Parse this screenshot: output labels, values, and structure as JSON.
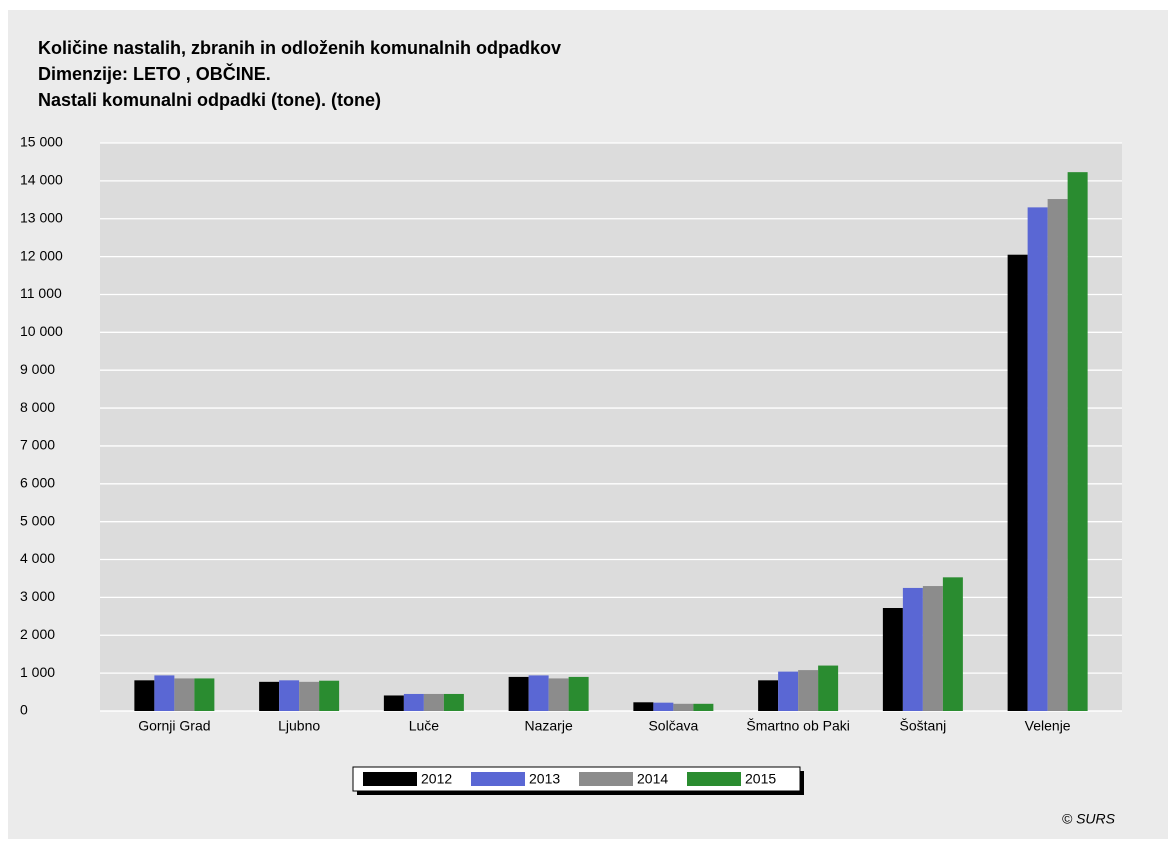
{
  "chart_data": {
    "type": "bar",
    "title": "Količine nastalih, zbranih in odloženih komunalnih odpadkov",
    "subtitle": "Dimenzije: LETO , OBČINE.",
    "y_label": "Nastali komunalni odpadki (tone). (tone)",
    "source": "© SURS",
    "categories": [
      "Gornji Grad",
      "Ljubno",
      "Luče",
      "Nazarje",
      "Solčava",
      "Šmartno ob Paki",
      "Šoštanj",
      "Velenje"
    ],
    "series": [
      {
        "name": "2012",
        "color": "#000000",
        "values": [
          810,
          770,
          410,
          900,
          230,
          810,
          2720,
          12050
        ]
      },
      {
        "name": "2013",
        "color": "#5a67d4",
        "values": [
          940,
          810,
          450,
          940,
          220,
          1040,
          3250,
          13300
        ]
      },
      {
        "name": "2014",
        "color": "#8c8c8c",
        "values": [
          860,
          770,
          450,
          860,
          190,
          1080,
          3300,
          13520
        ]
      },
      {
        "name": "2015",
        "color": "#2a8c30",
        "values": [
          860,
          800,
          450,
          900,
          190,
          1200,
          3530,
          14230
        ]
      }
    ],
    "ylim": [
      0,
      15000
    ],
    "yticks": [
      0,
      {
        "value": 1000,
        "label": "1 000"
      },
      {
        "value": 2000,
        "label": "2 000"
      },
      {
        "value": 3000,
        "label": "3 000"
      },
      {
        "value": 4000,
        "label": "4 000"
      },
      {
        "value": 5000,
        "label": "5 000"
      },
      {
        "value": 6000,
        "label": "6 000"
      },
      {
        "value": 7000,
        "label": "7 000"
      },
      {
        "value": 8000,
        "label": "8 000"
      },
      {
        "value": 9000,
        "label": "9 000"
      },
      {
        "value": 10000,
        "label": "10 000"
      },
      {
        "value": 11000,
        "label": "11 000"
      },
      {
        "value": 12000,
        "label": "12 000"
      },
      {
        "value": 13000,
        "label": "13 000"
      },
      {
        "value": 14000,
        "label": "14 000"
      },
      {
        "value": 15000,
        "label": "15 000"
      }
    ],
    "grid": true,
    "legend": "bottom"
  }
}
